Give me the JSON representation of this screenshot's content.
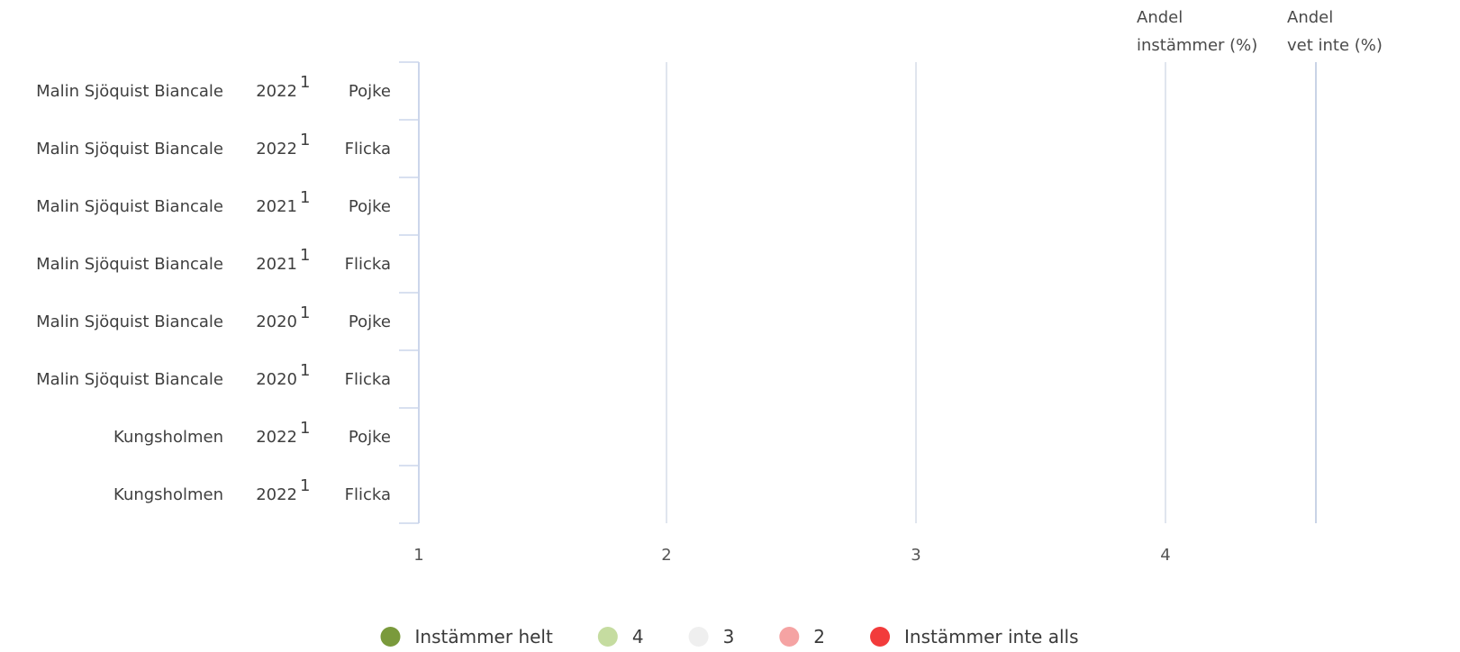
{
  "chart_data": {
    "type": "bar",
    "orientation": "horizontal",
    "stacked": true,
    "rows": [
      {
        "name": "Malin Sjöquist Biancale",
        "year": "2022",
        "note": "1",
        "group": "Pojke"
      },
      {
        "name": "Malin Sjöquist Biancale",
        "year": "2022",
        "note": "1",
        "group": "Flicka"
      },
      {
        "name": "Malin Sjöquist Biancale",
        "year": "2021",
        "note": "1",
        "group": "Pojke"
      },
      {
        "name": "Malin Sjöquist Biancale",
        "year": "2021",
        "note": "1",
        "group": "Flicka"
      },
      {
        "name": "Malin Sjöquist Biancale",
        "year": "2020",
        "note": "1",
        "group": "Pojke"
      },
      {
        "name": "Malin Sjöquist Biancale",
        "year": "2020",
        "note": "1",
        "group": "Flicka"
      },
      {
        "name": "Kungsholmen",
        "year": "2022",
        "note": "1",
        "group": "Pojke"
      },
      {
        "name": "Kungsholmen",
        "year": "2022",
        "note": "1",
        "group": "Flicka"
      }
    ],
    "x_ticks": [
      "1",
      "2",
      "3",
      "4"
    ],
    "xlim": [
      1,
      4.6
    ],
    "extra_columns": [
      {
        "line1": "Andel",
        "line2": "instämmer (%)"
      },
      {
        "line1": "Andel",
        "line2": "vet inte (%)"
      }
    ],
    "legend": [
      {
        "label": "Instämmer helt",
        "color": "#7a9a3c"
      },
      {
        "label": "4",
        "color": "#c5dca0"
      },
      {
        "label": "3",
        "color": "#efefef"
      },
      {
        "label": "2",
        "color": "#f5a3a3"
      },
      {
        "label": "Instämmer inte alls",
        "color": "#f23b3b"
      }
    ],
    "legend_position": "bottom",
    "grid": true,
    "series": []
  }
}
